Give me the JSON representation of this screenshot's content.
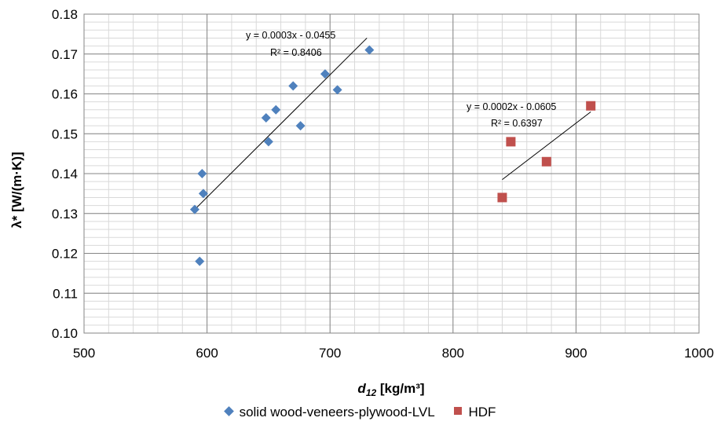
{
  "chart_data": {
    "type": "scatter",
    "xlabel": "d12 [kg/m³]",
    "xlabel_main": "d",
    "xlabel_sub": "12",
    "xlabel_rest": " [kg/m³]",
    "ylabel": "λ* [W/(m·K)]",
    "xlim": [
      500,
      1000
    ],
    "ylim": [
      0.1,
      0.18
    ],
    "x_ticks": [
      "500",
      "600",
      "700",
      "800",
      "900",
      "1000"
    ],
    "y_ticks": [
      "0.10",
      "0.11",
      "0.12",
      "0.13",
      "0.14",
      "0.15",
      "0.16",
      "0.17",
      "0.18"
    ],
    "grid": true,
    "legend_position": "bottom",
    "series": [
      {
        "name": "solid wood-veneers-plywood-LVL",
        "marker": "diamond",
        "color": "#4f81bd",
        "points": [
          {
            "x": 590,
            "y": 0.131
          },
          {
            "x": 594,
            "y": 0.118
          },
          {
            "x": 596,
            "y": 0.14
          },
          {
            "x": 597,
            "y": 0.135
          },
          {
            "x": 648,
            "y": 0.154
          },
          {
            "x": 650,
            "y": 0.148
          },
          {
            "x": 656,
            "y": 0.156
          },
          {
            "x": 670,
            "y": 0.162
          },
          {
            "x": 676,
            "y": 0.152
          },
          {
            "x": 696,
            "y": 0.165
          },
          {
            "x": 706,
            "y": 0.161
          },
          {
            "x": 732,
            "y": 0.171
          }
        ],
        "trendline": {
          "equation": "y = 0.0003x - 0.0455",
          "r2": "R² = 0.8406",
          "x_range": [
            590,
            730
          ],
          "y_range": [
            0.131,
            0.174
          ]
        }
      },
      {
        "name": "HDF",
        "marker": "square",
        "color": "#c0504d",
        "points": [
          {
            "x": 840,
            "y": 0.134
          },
          {
            "x": 847,
            "y": 0.148
          },
          {
            "x": 876,
            "y": 0.143
          },
          {
            "x": 912,
            "y": 0.157
          }
        ],
        "trendline": {
          "equation": "y = 0.0002x - 0.0605",
          "r2": "R² = 0.6397",
          "x_range": [
            840,
            912
          ],
          "y_range": [
            0.1385,
            0.1555
          ]
        }
      }
    ]
  }
}
